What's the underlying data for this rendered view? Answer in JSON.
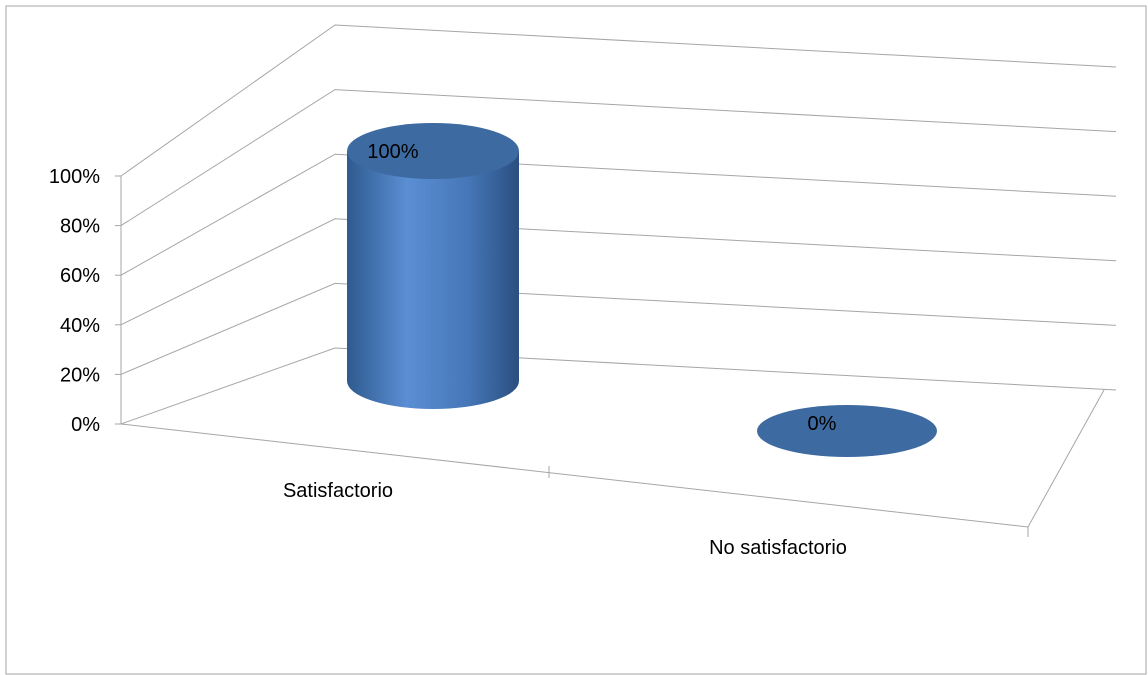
{
  "chart_data": {
    "type": "bar",
    "style": "3d-cylinder",
    "categories": [
      "Satisfactorio",
      "No satisfactorio"
    ],
    "values": [
      100,
      0
    ],
    "data_labels": [
      "100%",
      "0%"
    ],
    "y_ticks": [
      "0%",
      "20%",
      "40%",
      "60%",
      "80%",
      "100%"
    ],
    "ylim": [
      0,
      100
    ],
    "title": "",
    "xlabel": "",
    "ylabel": "",
    "grid": true,
    "legend": "none",
    "colors": {
      "bar": "#4f81bd",
      "bar_light": "#5b8ed4",
      "bar_dark": "#2e5a8e",
      "bar_top": "#3d6aa1",
      "grid": "#a6a6a6",
      "border": "#a6a6a6"
    }
  }
}
